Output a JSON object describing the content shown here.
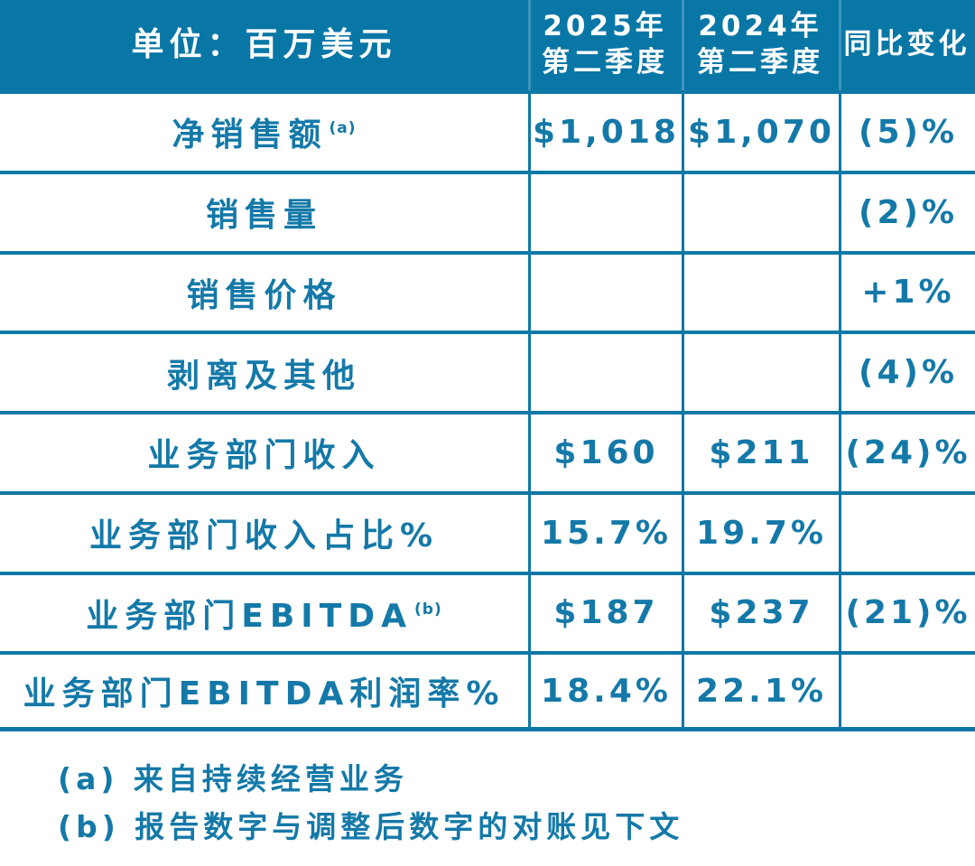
{
  "chart_data": {
    "type": "table",
    "title": "单位：百万美元",
    "columns": [
      "单位：百万美元",
      "2025年第二季度",
      "2024年第二季度",
      "同比变化"
    ],
    "rows": [
      [
        "净销售额 (a)",
        "$1,018",
        "$1,070",
        "(5)%"
      ],
      [
        "销售量",
        "",
        "",
        "(2)%"
      ],
      [
        "销售价格",
        "",
        "",
        "+1%"
      ],
      [
        "剥离及其他",
        "",
        "",
        "(4)%"
      ],
      [
        "业务部门收入",
        "$160",
        "$211",
        "(24)%"
      ],
      [
        "业务部门收入占比%",
        "15.7%",
        "19.7%",
        ""
      ],
      [
        "业务部门EBITDA (b)",
        "$187",
        "$237",
        "(21)%"
      ],
      [
        "业务部门EBITDA利润率%",
        "18.4%",
        "22.1%",
        ""
      ]
    ],
    "footnotes": [
      "(a) 来自持续经营业务",
      "(b) 报告数字与调整后数字的对账见下文"
    ]
  },
  "colors": {
    "header_bg": "#0877a6",
    "text_accent": "#1479a8",
    "border": "#0e78a6",
    "header_text": "#ffffff"
  },
  "header": {
    "unit": "单位：百万美元",
    "col2025_line1": "2025年",
    "col2025_line2": "第二季度",
    "col2024_line1": "2024年",
    "col2024_line2": "第二季度",
    "yoy": "同比变化"
  },
  "rows": [
    {
      "label": "净销售额",
      "sup": "(a)",
      "v2025": "$1,018",
      "v2024": "$1,070",
      "yoy": "(5)%"
    },
    {
      "label": "销售量",
      "sup": "",
      "v2025": "",
      "v2024": "",
      "yoy": "(2)%"
    },
    {
      "label": "销售价格",
      "sup": "",
      "v2025": "",
      "v2024": "",
      "yoy": "+1%"
    },
    {
      "label": "剥离及其他",
      "sup": "",
      "v2025": "",
      "v2024": "",
      "yoy": "(4)%"
    },
    {
      "label": "业务部门收入",
      "sup": "",
      "v2025": "$160",
      "v2024": "$211",
      "yoy": "(24)%"
    },
    {
      "label": "业务部门收入占比%",
      "sup": "",
      "v2025": "15.7%",
      "v2024": "19.7%",
      "yoy": ""
    },
    {
      "label": "业务部门EBITDA",
      "sup": "(b)",
      "v2025": "$187",
      "v2024": "$237",
      "yoy": "(21)%"
    },
    {
      "label": "业务部门EBITDA利润率%",
      "sup": "",
      "v2025": "18.4%",
      "v2024": "22.1%",
      "yoy": ""
    }
  ],
  "footnotes": {
    "a": "(a) 来自持续经营业务",
    "b": "(b) 报告数字与调整后数字的对账见下文"
  }
}
